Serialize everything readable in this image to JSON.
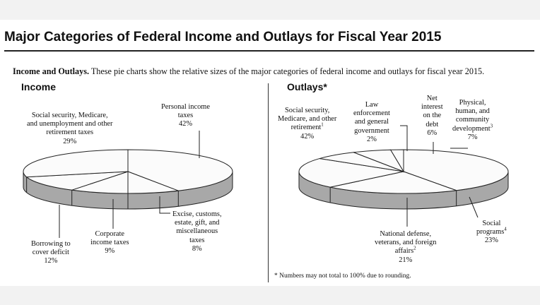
{
  "title": "Major Categories of Federal Income and Outlays for Fiscal Year 2015",
  "intro_bold": "Income and Outlays.",
  "intro_text": " These pie charts show the relative sizes of the major categories of federal income and outlays for fiscal year 2015.",
  "footnote": "* Numbers may not total to 100% due to rounding.",
  "colors": {
    "top": "#fbfbfb",
    "side": "#a8a8a8",
    "stroke": "#222222"
  },
  "chart_data": [
    {
      "type": "pie",
      "title": "Income",
      "slices": [
        {
          "label": [
            "Personal income",
            "taxes"
          ],
          "value": 42,
          "value_label": "42%"
        },
        {
          "label": [
            "Excise, customs,",
            "estate, gift, and",
            "miscellaneous",
            "taxes"
          ],
          "value": 8,
          "value_label": "8%"
        },
        {
          "label": [
            "Corporate",
            "income taxes"
          ],
          "value": 9,
          "value_label": "9%"
        },
        {
          "label": [
            "Borrowing to",
            "cover deficit"
          ],
          "value": 12,
          "value_label": "12%"
        },
        {
          "label": [
            "Social security, Medicare,",
            "and unemployment and other",
            "retirement taxes"
          ],
          "value": 29,
          "value_label": "29%"
        }
      ]
    },
    {
      "type": "pie",
      "title": "Outlays*",
      "slices": [
        {
          "label": [
            "Social security,",
            "Medicare, and other",
            "retirement"
          ],
          "sup": "1",
          "value": 42,
          "value_label": "42%"
        },
        {
          "label": [
            "National defense,",
            "veterans, and foreign",
            "affairs"
          ],
          "sup": "2",
          "value": 21,
          "value_label": "21%"
        },
        {
          "label": [
            "Social",
            "programs"
          ],
          "sup": "4",
          "value": 23,
          "value_label": "23%"
        },
        {
          "label": [
            "Physical,",
            "human, and",
            "community",
            "development"
          ],
          "sup": "3",
          "value": 7,
          "value_label": "7%"
        },
        {
          "label": [
            "Net",
            "interest",
            "on the",
            "debt"
          ],
          "value": 6,
          "value_label": "6%"
        },
        {
          "label": [
            "Law",
            "enforcement",
            "and general",
            "government"
          ],
          "value": 2,
          "value_label": "2%"
        }
      ]
    }
  ]
}
